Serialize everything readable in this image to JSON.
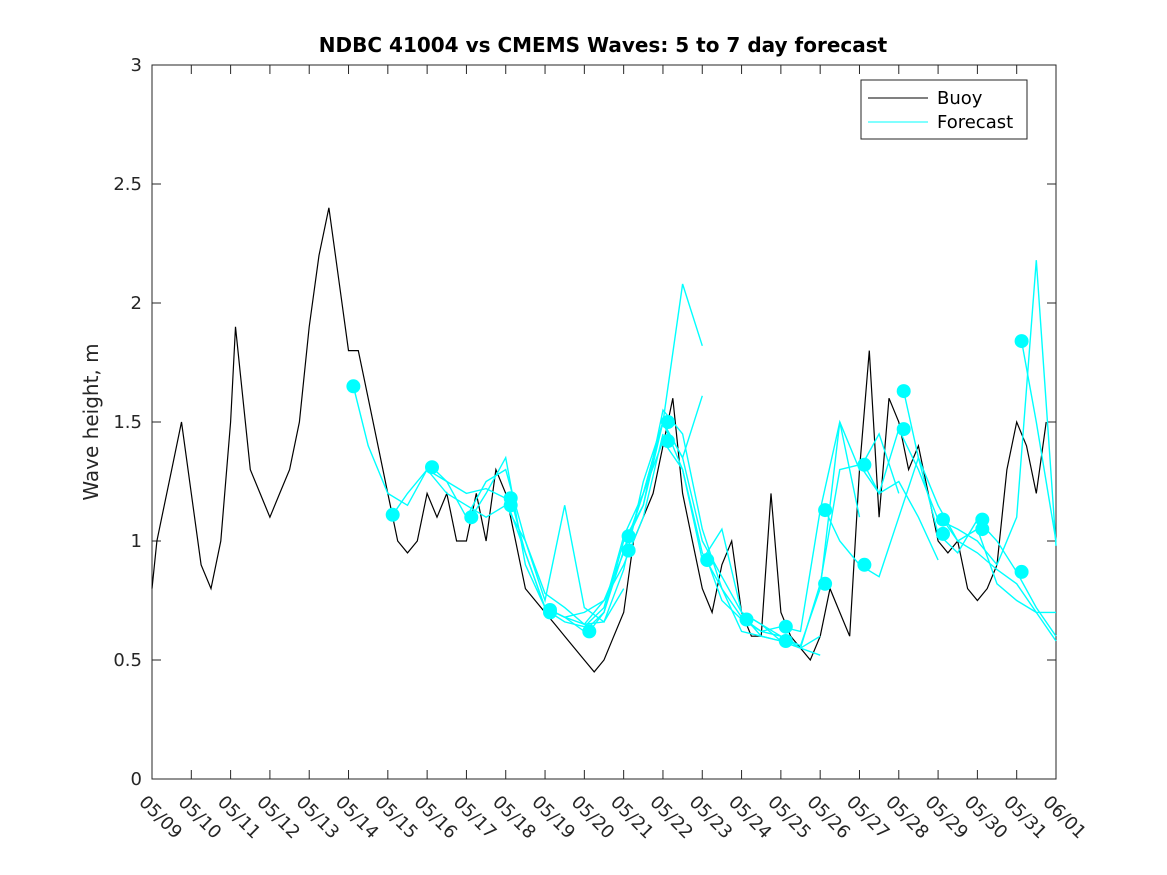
{
  "chart_data": {
    "type": "line",
    "title": "NDBC 41004 vs CMEMS Waves: 5 to 7 day forecast",
    "xlabel": "",
    "ylabel": "Wave height, m",
    "xlim": [
      "2019-05-09",
      "2019-06-01"
    ],
    "ylim": [
      0,
      3
    ],
    "grid": false,
    "legend_position": "top-right",
    "x_tick_labels": [
      "05/09",
      "05/10",
      "05/11",
      "05/12",
      "05/13",
      "05/14",
      "05/15",
      "05/16",
      "05/17",
      "05/18",
      "05/19",
      "05/20",
      "05/21",
      "05/22",
      "05/23",
      "05/24",
      "05/25",
      "05/26",
      "05/27",
      "05/28",
      "05/29",
      "05/30",
      "05/31",
      "06/01"
    ],
    "y_ticks": [
      0,
      0.5,
      1,
      1.5,
      2,
      2.5,
      3
    ],
    "y_tick_labels": [
      "0",
      "0.5",
      "1",
      "1.5",
      "2",
      "2.5",
      "3"
    ],
    "colors": {
      "buoy": "#000000",
      "forecast": "#00ffff"
    },
    "series": [
      {
        "name": "Buoy",
        "x": [
          "05/09 00:00",
          "05/09 03:00",
          "05/09 06:00",
          "05/09 12:00",
          "05/09 18:00",
          "05/10 00:00",
          "05/10 06:00",
          "05/10 12:00",
          "05/10 18:00",
          "05/11 00:00",
          "05/11 03:00",
          "05/11 06:00",
          "05/11 12:00",
          "05/11 18:00",
          "05/12 00:00",
          "05/12 06:00",
          "05/12 12:00",
          "05/12 18:00",
          "05/13 00:00",
          "05/13 06:00",
          "05/13 12:00",
          "05/13 18:00",
          "05/14 00:00",
          "05/14 06:00",
          "05/14 12:00",
          "05/14 18:00",
          "05/15 00:00",
          "05/15 06:00",
          "05/15 12:00",
          "05/15 18:00",
          "05/16 00:00",
          "05/16 06:00",
          "05/16 12:00",
          "05/16 18:00",
          "05/17 00:00",
          "05/17 06:00",
          "05/17 12:00",
          "05/17 18:00",
          "05/18 00:00",
          "05/18 06:00",
          "05/18 12:00",
          "05/18 18:00",
          "05/19 00:00",
          "05/19 06:00",
          "05/19 12:00",
          "05/19 18:00",
          "05/20 00:00",
          "05/20 06:00",
          "05/20 12:00",
          "05/20 18:00",
          "05/21 00:00",
          "05/21 06:00",
          "05/21 12:00",
          "05/21 18:00",
          "05/22 00:00",
          "05/22 06:00",
          "05/22 12:00",
          "05/22 18:00",
          "05/23 00:00",
          "05/23 06:00",
          "05/23 12:00",
          "05/23 18:00",
          "05/24 00:00",
          "05/24 06:00",
          "05/24 12:00",
          "05/24 18:00",
          "05/25 00:00",
          "05/25 06:00",
          "05/25 12:00",
          "05/25 18:00",
          "05/26 00:00",
          "05/26 06:00",
          "05/26 12:00",
          "05/26 18:00",
          "05/27 00:00",
          "05/27 06:00",
          "05/27 12:00",
          "05/27 18:00",
          "05/28 00:00",
          "05/28 06:00",
          "05/28 12:00",
          "05/28 18:00",
          "05/29 00:00",
          "05/29 06:00",
          "05/29 12:00",
          "05/29 18:00",
          "05/30 00:00",
          "05/30 06:00",
          "05/30 12:00",
          "05/30 18:00",
          "05/31 00:00",
          "05/31 06:00",
          "05/31 12:00",
          "05/31 18:00"
        ],
        "values": [
          0.8,
          1.0,
          1.1,
          1.3,
          1.5,
          1.2,
          0.9,
          0.8,
          1.0,
          1.5,
          1.9,
          1.7,
          1.3,
          1.2,
          1.1,
          1.2,
          1.3,
          1.5,
          1.9,
          2.2,
          2.4,
          2.1,
          1.8,
          1.8,
          1.6,
          1.4,
          1.2,
          1.0,
          0.95,
          1.0,
          1.2,
          1.1,
          1.2,
          1.0,
          1.0,
          1.2,
          1.0,
          1.3,
          1.2,
          1.0,
          0.8,
          0.75,
          0.7,
          0.65,
          0.6,
          0.55,
          0.5,
          0.45,
          0.5,
          0.6,
          0.7,
          1.0,
          1.1,
          1.2,
          1.4,
          1.6,
          1.2,
          1.0,
          0.8,
          0.7,
          0.9,
          1.0,
          0.7,
          0.6,
          0.6,
          1.2,
          0.7,
          0.6,
          0.55,
          0.5,
          0.6,
          0.8,
          0.7,
          0.6,
          1.3,
          1.8,
          1.1,
          1.6,
          1.5,
          1.3,
          1.4,
          1.2,
          1.0,
          0.95,
          1.0,
          0.8,
          0.75,
          0.8,
          0.9,
          1.3,
          1.5,
          1.4,
          1.2,
          1.5
        ]
      },
      {
        "name": "Forecast",
        "segments": [
          {
            "x": [
              "05/14 03:00",
              "05/14 12:00",
              "05/15 00:00",
              "05/15 12:00",
              "05/16 00:00",
              "05/16 12:00",
              "05/17 00:00",
              "05/17 12:00",
              "05/18 00:00",
              "05/18 12:00",
              "05/19 00:00",
              "05/19 12:00",
              "05/20 00:00",
              "05/20 12:00",
              "05/21 00:00"
            ],
            "values": [
              1.65,
              1.4,
              1.2,
              1.15,
              1.3,
              1.2,
              1.15,
              1.1,
              1.15,
              1.0,
              0.78,
              0.72,
              0.65,
              0.66,
              0.8
            ]
          },
          {
            "x": [
              "05/15 03:00",
              "05/15 12:00",
              "05/16 00:00",
              "05/16 12:00",
              "05/17 00:00",
              "05/17 12:00",
              "05/18 00:00",
              "05/18 12:00",
              "05/19 00:00",
              "05/19 12:00",
              "05/20 00:00",
              "05/20 12:00",
              "05/21 00:00",
              "05/21 12:00",
              "05/22 00:00"
            ],
            "values": [
              1.11,
              1.2,
              1.3,
              1.25,
              1.2,
              1.22,
              1.18,
              0.95,
              0.72,
              0.68,
              0.7,
              0.75,
              0.9,
              1.1,
              1.45
            ]
          },
          {
            "x": [
              "05/16 03:00",
              "05/16 12:00",
              "05/17 00:00",
              "05/17 12:00",
              "05/18 00:00",
              "05/18 12:00",
              "05/19 00:00",
              "05/19 12:00",
              "05/20 00:00",
              "05/20 12:00",
              "05/21 00:00",
              "05/21 12:00",
              "05/22 00:00",
              "05/22 12:00",
              "05/23 00:00"
            ],
            "values": [
              1.31,
              1.25,
              1.1,
              1.25,
              1.3,
              1.0,
              0.75,
              1.15,
              0.72,
              0.66,
              0.88,
              1.25,
              1.5,
              2.08,
              1.82
            ]
          },
          {
            "x": [
              "05/17 03:00",
              "05/17 12:00",
              "05/18 00:00",
              "05/18 12:00",
              "05/19 00:00",
              "05/19 12:00",
              "05/20 00:00",
              "05/20 12:00",
              "05/21 00:00",
              "05/21 12:00",
              "05/22 00:00",
              "05/22 12:00",
              "05/23 00:00"
            ],
            "values": [
              1.1,
              1.2,
              1.35,
              0.9,
              0.72,
              0.68,
              0.65,
              0.75,
              0.95,
              1.2,
              1.5,
              1.35,
              1.61
            ]
          },
          {
            "x": [
              "05/18 03:00",
              "05/18 12:00",
              "05/19 00:00",
              "05/19 12:00",
              "05/20 00:00",
              "05/20 12:00",
              "05/21 00:00",
              "05/21 12:00",
              "05/22 00:00",
              "05/22 12:00",
              "05/23 00:00",
              "05/23 12:00",
              "05/24 00:00",
              "05/24 12:00",
              "05/25 00:00"
            ],
            "values": [
              1.18,
              0.95,
              0.72,
              0.68,
              0.62,
              0.7,
              1.0,
              1.15,
              1.55,
              1.45,
              1.05,
              0.8,
              0.62,
              0.6,
              0.58
            ]
          },
          {
            "x": [
              "05/19 03:00",
              "05/19 12:00",
              "05/20 00:00",
              "05/20 12:00",
              "05/21 00:00",
              "05/21 12:00",
              "05/22 00:00",
              "05/22 12:00",
              "05/23 00:00",
              "05/23 12:00",
              "05/24 00:00",
              "05/24 12:00",
              "05/25 00:00",
              "05/25 12:00",
              "05/26 00:00"
            ],
            "values": [
              0.7,
              0.66,
              0.64,
              0.72,
              1.02,
              1.2,
              1.5,
              1.35,
              1.0,
              0.85,
              0.7,
              0.65,
              0.58,
              0.55,
              0.6
            ]
          },
          {
            "x": [
              "05/20 03:00",
              "05/20 12:00",
              "05/21 00:00",
              "05/21 12:00",
              "05/22 00:00",
              "05/22 12:00",
              "05/23 00:00",
              "05/23 12:00",
              "05/24 00:00",
              "05/24 12:00",
              "05/25 00:00",
              "05/25 12:00",
              "05/26 00:00"
            ],
            "values": [
              0.62,
              0.7,
              0.96,
              1.2,
              1.42,
              1.3,
              0.95,
              0.8,
              0.68,
              0.62,
              0.6,
              0.55,
              0.52
            ]
          },
          {
            "x": [
              "05/21 03:00",
              "05/21 12:00",
              "05/22 00:00",
              "05/22 12:00",
              "05/23 00:00",
              "05/23 12:00",
              "05/24 00:00",
              "05/24 12:00",
              "05/25 00:00",
              "05/25 12:00",
              "05/26 00:00",
              "05/26 12:00",
              "05/27 00:00"
            ],
            "values": [
              1.02,
              1.15,
              1.5,
              1.3,
              0.92,
              1.05,
              0.7,
              0.65,
              0.6,
              0.56,
              0.8,
              1.5,
              1.1
            ]
          },
          {
            "x": [
              "05/23 03:00",
              "05/23 12:00",
              "05/24 00:00",
              "05/24 12:00",
              "05/25 00:00",
              "05/25 12:00",
              "05/26 00:00",
              "05/26 12:00",
              "05/27 00:00",
              "05/27 12:00",
              "05/28 00:00"
            ],
            "values": [
              0.92,
              0.75,
              0.67,
              0.62,
              0.64,
              0.62,
              1.13,
              1.5,
              1.3,
              1.45,
              1.2
            ]
          },
          {
            "x": [
              "05/24 03:00",
              "05/24 12:00",
              "05/25 00:00",
              "05/25 12:00",
              "05/26 00:00",
              "05/26 12:00",
              "05/27 00:00",
              "05/27 12:00",
              "05/28 00:00",
              "05/28 12:00",
              "05/29 00:00"
            ],
            "values": [
              0.67,
              0.6,
              0.58,
              0.55,
              0.82,
              1.3,
              1.32,
              1.2,
              1.25,
              1.1,
              0.92
            ]
          },
          {
            "x": [
              "05/26 03:00",
              "05/26 12:00",
              "05/27 00:00",
              "05/27 12:00",
              "05/28 00:00",
              "05/28 12:00",
              "05/29 00:00",
              "05/29 12:00",
              "05/30 00:00",
              "05/30 12:00",
              "05/31 00:00",
              "05/31 12:00",
              "06/01 00:00"
            ],
            "values": [
              1.13,
              1.0,
              0.9,
              0.85,
              1.1,
              1.35,
              1.15,
              1.0,
              0.95,
              0.88,
              0.82,
              0.7,
              0.58
            ]
          },
          {
            "x": [
              "05/27 03:00",
              "05/27 12:00",
              "05/28 00:00",
              "05/28 12:00",
              "05/29 00:00",
              "05/29 12:00",
              "05/30 00:00",
              "05/30 12:00",
              "05/31 00:00",
              "05/31 12:00",
              "06/01 00:00"
            ],
            "values": [
              1.32,
              1.2,
              1.47,
              1.3,
              1.09,
              1.05,
              1.0,
              0.9,
              1.1,
              2.18,
              0.98
            ]
          },
          {
            "x": [
              "05/28 03:00",
              "05/28 12:00",
              "05/29 00:00",
              "05/29 12:00",
              "05/30 00:00",
              "05/30 12:00",
              "05/31 00:00",
              "05/31 12:00",
              "06/01 00:00"
            ],
            "values": [
              1.63,
              1.35,
              1.03,
              0.95,
              1.09,
              1.0,
              0.87,
              0.72,
              0.6
            ]
          },
          {
            "x": [
              "05/29 03:00",
              "05/29 12:00",
              "05/30 00:00",
              "05/30 12:00",
              "05/31 00:00",
              "05/31 12:00",
              "06/01 00:00"
            ],
            "values": [
              1.09,
              1.0,
              1.05,
              0.82,
              0.75,
              0.7,
              0.7
            ]
          },
          {
            "x": [
              "05/31 03:00",
              "05/31 12:00",
              "06/01 00:00"
            ],
            "values": [
              1.84,
              1.5,
              1.0
            ]
          }
        ]
      }
    ],
    "forecast_markers": {
      "x": [
        "05/14 03:00",
        "05/15 03:00",
        "05/16 03:00",
        "05/17 03:00",
        "05/18 03:00",
        "05/18 03:00",
        "05/19 03:00",
        "05/19 03:00",
        "05/20 03:00",
        "05/21 03:00",
        "05/21 03:00",
        "05/22 03:00",
        "05/22 03:00",
        "05/23 03:00",
        "05/24 03:00",
        "05/25 03:00",
        "05/25 03:00",
        "05/26 03:00",
        "05/26 03:00",
        "05/27 03:00",
        "05/27 03:00",
        "05/28 03:00",
        "05/28 03:00",
        "05/29 03:00",
        "05/29 03:00",
        "05/30 03:00",
        "05/30 03:00",
        "05/31 03:00",
        "05/31 03:00"
      ],
      "values": [
        1.65,
        1.11,
        1.31,
        1.1,
        1.18,
        1.15,
        0.71,
        0.7,
        0.62,
        1.02,
        0.96,
        1.5,
        1.42,
        0.92,
        0.67,
        0.64,
        0.58,
        1.13,
        0.82,
        1.32,
        0.9,
        1.63,
        1.47,
        1.09,
        1.03,
        1.09,
        1.05,
        1.84,
        0.87
      ]
    }
  }
}
